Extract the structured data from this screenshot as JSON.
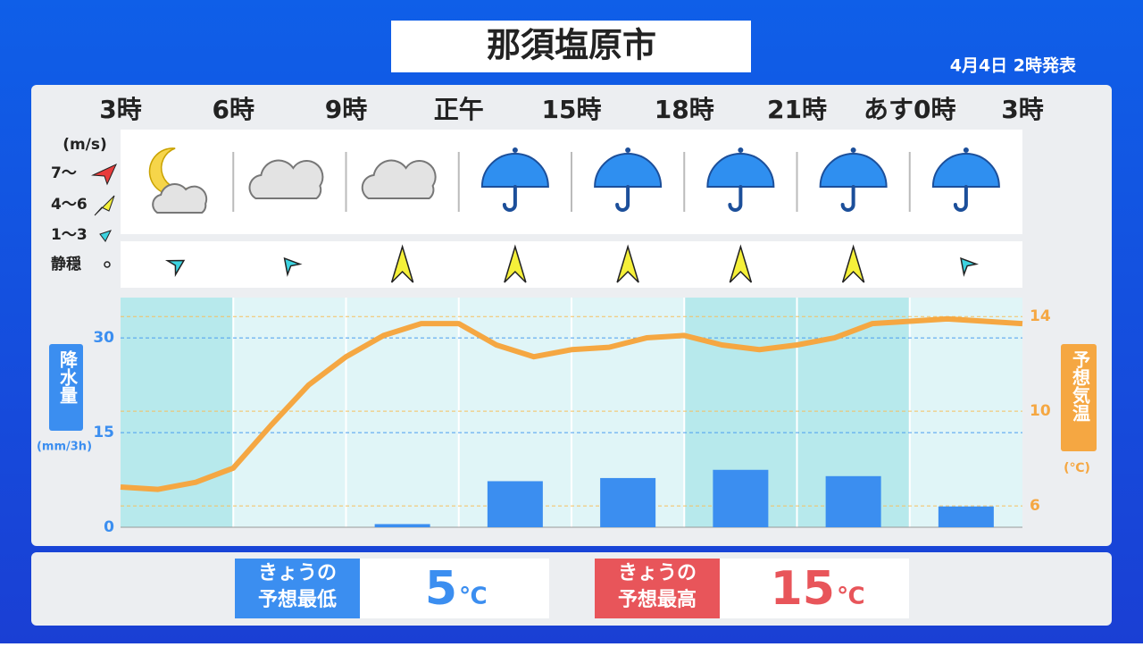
{
  "header": {
    "title": "那須塩原市",
    "issued": "4月4日 2時発表"
  },
  "wind_legend": {
    "unit": "(m/s)",
    "levels": [
      "7〜",
      "4〜6",
      "1〜3",
      "静穏"
    ]
  },
  "chart_data": {
    "type": "bar-line",
    "x_labels": [
      "3時",
      "6時",
      "9時",
      "正午",
      "15時",
      "18時",
      "21時",
      "あす0時",
      "3時"
    ],
    "series": [
      {
        "color": "#3b8ef0",
        "values": [
          0,
          0,
          0.5,
          7.3,
          7.8,
          9.1,
          8.1,
          3.3
        ]
      },
      {
        "type": "line",
        "axis": "y2",
        "color": "#f5a742",
        "values": [
          6.8,
          6.7,
          7.0,
          7.6,
          9.4,
          11.1,
          12.3,
          13.2,
          13.7,
          13.7,
          12.8,
          12.3,
          12.6,
          12.7,
          13.1,
          13.2,
          12.8,
          12.6,
          12.8,
          13.1,
          13.7,
          13.8,
          13.9,
          13.8,
          13.7
        ]
      }
    ],
    "ylim": [
      0,
      36.4
    ],
    "yticks": [
      0,
      15,
      30
    ],
    "y2lim": [
      5.1,
      14.8
    ],
    "y2ticks": [
      6,
      10,
      14
    ],
    "ylabel": "降水量",
    "yunit": "(mm/3h)",
    "y2label": "予想気温",
    "y2unit": "(℃)"
  },
  "summary": {
    "low": {
      "label": [
        "きょうの",
        "予想最低"
      ],
      "value": 5,
      "unit": "℃"
    },
    "high": {
      "label": [
        "きょうの",
        "予想最高"
      ],
      "value": 15,
      "unit": "℃"
    }
  }
}
